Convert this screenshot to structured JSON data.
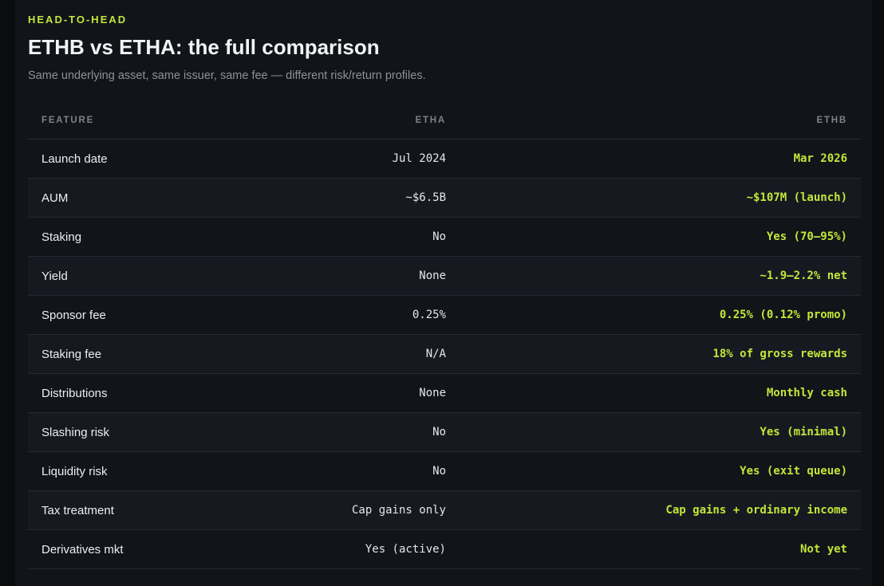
{
  "header": {
    "eyebrow": "HEAD-TO-HEAD",
    "title": "ETHB vs ETHA: the full comparison",
    "subtitle": "Same underlying asset, same issuer, same fee — different risk/return profiles."
  },
  "table": {
    "columns": [
      "FEATURE",
      "ETHA",
      "ETHB"
    ],
    "rows": [
      {
        "feature": "Launch date",
        "etha": "Jul 2024",
        "ethb": "Mar 2026"
      },
      {
        "feature": "AUM",
        "etha": "~$6.5B",
        "ethb": "~$107M (launch)"
      },
      {
        "feature": "Staking",
        "etha": "No",
        "ethb": "Yes (70–95%)"
      },
      {
        "feature": "Yield",
        "etha": "None",
        "ethb": "~1.9–2.2% net"
      },
      {
        "feature": "Sponsor fee",
        "etha": "0.25%",
        "ethb": "0.25% (0.12% promo)"
      },
      {
        "feature": "Staking fee",
        "etha": "N/A",
        "ethb": "18% of gross rewards"
      },
      {
        "feature": "Distributions",
        "etha": "None",
        "ethb": "Monthly cash"
      },
      {
        "feature": "Slashing risk",
        "etha": "No",
        "ethb": "Yes (minimal)"
      },
      {
        "feature": "Liquidity risk",
        "etha": "No",
        "ethb": "Yes (exit queue)"
      },
      {
        "feature": "Tax treatment",
        "etha": "Cap gains only",
        "ethb": "Cap gains + ordinary income"
      },
      {
        "feature": "Derivatives mkt",
        "etha": "Yes (active)",
        "ethb": "Not yet"
      }
    ]
  },
  "colors": {
    "background": "#0a0c10",
    "card": "#111419",
    "accent": "#c3e63a",
    "text": "#eceef1",
    "muted": "#8c919a"
  }
}
